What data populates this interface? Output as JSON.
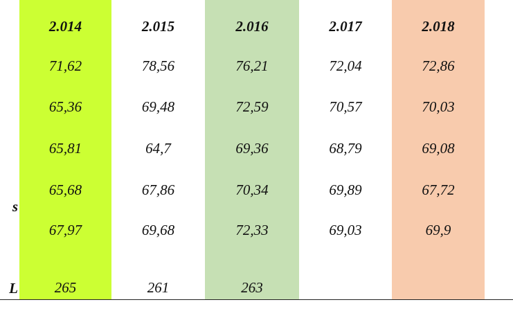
{
  "table": {
    "header": [
      "2.014",
      "2.015",
      "2.016",
      "2.017",
      "2.018"
    ],
    "rows": [
      {
        "cells": [
          "71,62",
          "78,56",
          "76,21",
          "72,04",
          "72,86"
        ]
      },
      {
        "cells": [
          "65,36",
          "69,48",
          "72,59",
          "70,57",
          "70,03"
        ]
      },
      {
        "cells": [
          "65,81",
          "64,7",
          "69,36",
          "68,79",
          "69,08"
        ]
      },
      {
        "label": "s",
        "cells": [
          "65,68",
          "67,86",
          "70,34",
          "69,89",
          "67,72"
        ]
      },
      {
        "cells": [
          "67,97",
          "69,68",
          "72,33",
          "69,03",
          "69,9"
        ]
      },
      {
        "label": "L",
        "cells": [
          "265",
          "261",
          "263"
        ]
      }
    ]
  }
}
